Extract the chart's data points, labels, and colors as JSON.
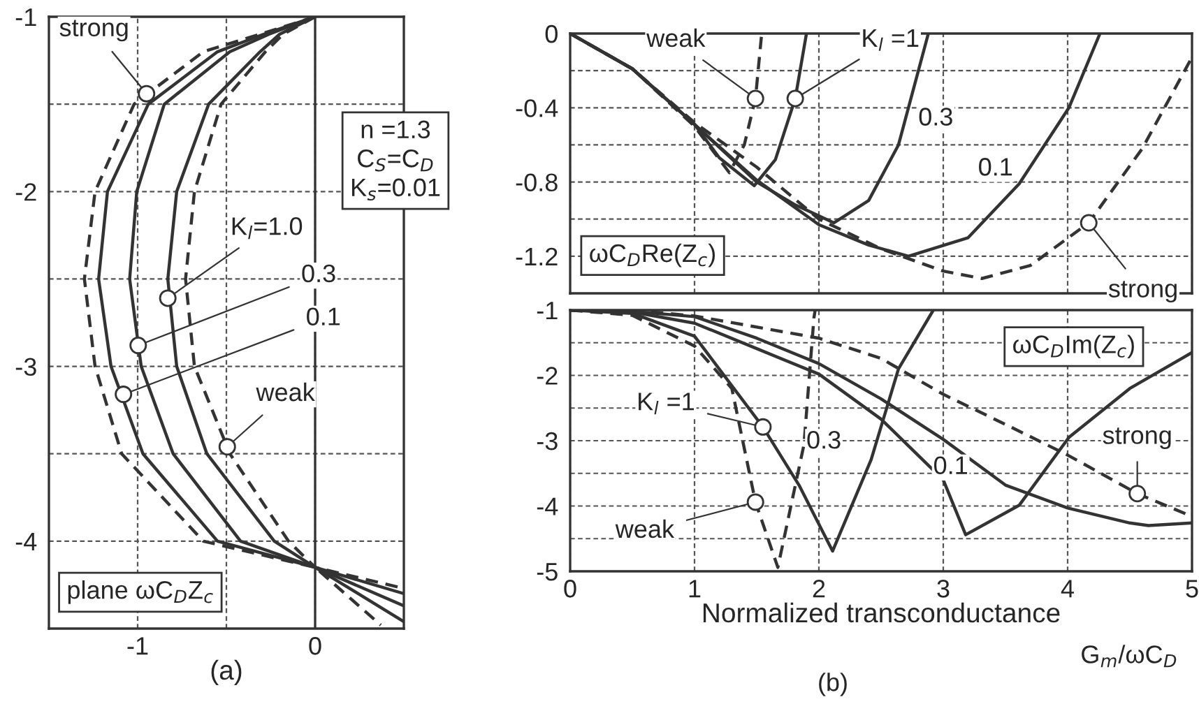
{
  "chart_data": [
    {
      "type": "line",
      "xlabel": "(a)",
      "xlim": [
        -1.5,
        0.5
      ],
      "ylim": [
        -4.5,
        -1
      ],
      "xticks": [
        -1,
        {
          "value": -0.5,
          "label": null
        },
        0
      ],
      "yticks": [
        -1,
        {
          "value": -1.5,
          "label": null
        },
        -2,
        {
          "value": -2.5,
          "label": null
        },
        -3,
        {
          "value": -3.5,
          "label": null
        },
        -4
      ],
      "grid": true,
      "ref_lines": [
        {
          "axis": "x",
          "value": 0,
          "label": null
        }
      ],
      "series": [
        {
          "color": "#333333",
          "line_style": "dashed",
          "x": [
            0,
            -0.31,
            -0.63,
            -1.02,
            -1.24,
            -1.3,
            -1.24,
            -1.09,
            -0.63,
            0,
            0.37
          ],
          "values": [
            -1,
            -1.1,
            -1.2,
            -1.5,
            -2,
            -2.5,
            -3,
            -3.5,
            -4,
            -4.15,
            -4.48
          ]
        },
        {
          "color": "#333333",
          "line_style": "solid",
          "x": [
            0,
            -0.29,
            -0.55,
            -0.94,
            -1.17,
            -1.22,
            -1.15,
            -0.97,
            -0.55,
            0,
            0.5
          ],
          "values": [
            -1,
            -1.1,
            -1.2,
            -1.5,
            -2,
            -2.5,
            -3,
            -3.5,
            -4,
            -4.15,
            -4.46
          ]
        },
        {
          "color": "#333333",
          "line_style": "solid",
          "x": [
            0,
            -0.26,
            -0.48,
            -0.85,
            -1.005,
            -1.045,
            -0.98,
            -0.8,
            -0.42,
            0,
            0.5
          ],
          "values": [
            -1,
            -1.1,
            -1.2,
            -1.5,
            -2,
            -2.5,
            -3,
            -3.5,
            -4,
            -4.15,
            -4.37
          ]
        },
        {
          "color": "#333333",
          "line_style": "solid",
          "x": [
            0,
            -0.2,
            -0.31,
            -0.6,
            -0.78,
            -0.83,
            -0.78,
            -0.61,
            -0.23,
            0,
            0.5
          ],
          "values": [
            -1,
            -1.1,
            -1.2,
            -1.5,
            -2,
            -2.5,
            -3,
            -3.5,
            -4,
            -4.15,
            -4.3
          ]
        },
        {
          "color": "#333333",
          "line_style": "dashed",
          "x": [
            0,
            -0.18,
            -0.28,
            -0.53,
            -0.68,
            -0.73,
            -0.68,
            -0.48,
            -0.15,
            0,
            0.5
          ],
          "values": [
            -1,
            -1.1,
            -1.2,
            -1.5,
            -2,
            -2.5,
            -3,
            -3.5,
            -4,
            -4.15,
            -4.27
          ]
        }
      ],
      "annotations": [
        {
          "text": "strong",
          "x": -0.95,
          "y": -1.44
        },
        {
          "text": "K$_{l}$=1.0",
          "x": -0.83,
          "y": -2.61
        },
        {
          "text": "0.3",
          "x": -0.997,
          "y": -2.88
        },
        {
          "text": "0.1",
          "x": -1.08,
          "y": -3.16
        },
        {
          "text": "weak",
          "x": -0.495,
          "y": -3.46
        },
        "n =1.3\nC$_{S}$=C$_{D}$\nK$_{s}$=0.01",
        "plane ωC$_{D}$Z$_{c}$"
      ]
    },
    {
      "type": "line",
      "xlim": [
        0,
        5
      ],
      "ylim": [
        -1.4,
        0
      ],
      "tick_labels": "y",
      "xticks": [
        0,
        1,
        2,
        3,
        4,
        5
      ],
      "yticks": [
        0,
        {
          "value": -0.2,
          "label": null
        },
        -0.4,
        {
          "value": -0.6,
          "label": null
        },
        -0.8,
        {
          "value": -1.0,
          "label": null
        },
        -1.2
      ],
      "grid": true,
      "series": [
        {
          "color": "#333333",
          "line_style": "dashed",
          "x": [
            0,
            0.5,
            1,
            1.28,
            1.4,
            1.49,
            1.54
          ],
          "values": [
            0,
            -0.19,
            -0.5,
            -0.75,
            -0.6,
            -0.35,
            0
          ]
        },
        {
          "color": "#333333",
          "line_style": "solid",
          "x": [
            0,
            0.5,
            1,
            1.2,
            1.48,
            1.65,
            1.81,
            1.9
          ],
          "values": [
            0,
            -0.19,
            -0.49,
            -0.67,
            -0.82,
            -0.68,
            -0.35,
            0
          ]
        },
        {
          "color": "#333333",
          "line_style": "solid",
          "x": [
            0,
            0.5,
            1,
            1.5,
            1.8,
            2.12,
            2.4,
            2.64,
            2.88
          ],
          "values": [
            0,
            -0.19,
            -0.49,
            -0.8,
            -0.92,
            -1.02,
            -0.9,
            -0.6,
            0
          ]
        },
        {
          "color": "#333333",
          "line_style": "solid",
          "x": [
            0,
            0.5,
            1,
            1.5,
            2,
            2.4,
            2.72,
            3.2,
            3.61,
            4.01,
            4.26
          ],
          "values": [
            0,
            -0.19,
            -0.49,
            -0.79,
            -1.03,
            -1.14,
            -1.2,
            -1.1,
            -0.81,
            -0.4,
            0
          ]
        },
        {
          "color": "#333333",
          "line_style": "dashed",
          "x": [
            0,
            0.5,
            1,
            1.5,
            2,
            2.5,
            3,
            3.31,
            3.7,
            4.17,
            4.6,
            4.99
          ],
          "values": [
            0,
            -0.19,
            -0.48,
            -0.72,
            -1.0,
            -1.16,
            -1.28,
            -1.32,
            -1.25,
            -1.02,
            -0.62,
            -0.14
          ]
        }
      ],
      "annotations": [
        {
          "text": "weak",
          "x": 1.49,
          "y": -0.35
        },
        {
          "text": "K$_{l}$ =1",
          "x": 1.81,
          "y": -0.35
        },
        "0.3",
        "0.1",
        {
          "text": "strong",
          "x": 4.17,
          "y": -1.02
        },
        "ωC$_{D}$Re(Z$_{c}$)"
      ]
    },
    {
      "type": "line",
      "xlabel": "Normalized transconductance",
      "xlim": [
        0,
        5
      ],
      "ylim": [
        -5,
        -1
      ],
      "xticks": [
        0,
        1,
        2,
        3,
        4,
        5
      ],
      "yticks": [
        -1,
        {
          "value": -1.5,
          "label": null
        },
        -2,
        {
          "value": -2.5,
          "label": null
        },
        -3,
        {
          "value": -3.5,
          "label": null
        },
        -4,
        {
          "value": -4.5,
          "label": null
        },
        -5
      ],
      "grid": true,
      "series": [
        {
          "color": "#333333",
          "line_style": "dashed",
          "x": [
            0,
            0.5,
            1,
            1.3,
            1.49,
            1.67,
            1.88,
            1.96,
            1.97
          ],
          "values": [
            -1,
            -1.08,
            -1.55,
            -2.2,
            -3.94,
            -4.94,
            -3.06,
            -1.12,
            -1.0
          ]
        },
        {
          "color": "#333333",
          "line_style": "solid",
          "x": [
            0,
            0.5,
            1,
            1.55,
            1.84,
            2.11,
            2.42,
            2.64,
            2.92
          ],
          "values": [
            -1,
            -1.05,
            -1.4,
            -2.79,
            -3.68,
            -4.69,
            -3.29,
            -1.9,
            -1.0
          ]
        },
        {
          "color": "#333333",
          "line_style": "solid",
          "x": [
            0,
            0.5,
            1,
            1.5,
            2,
            2.5,
            3,
            3.18,
            3.61,
            4.01,
            4.5,
            5
          ],
          "values": [
            -1,
            -1.03,
            -1.2,
            -1.59,
            -1.98,
            -2.67,
            -3.6,
            -4.44,
            -3.99,
            -2.95,
            -2.2,
            -1.65
          ]
        },
        {
          "color": "#333333",
          "line_style": "solid",
          "x": [
            0,
            0.5,
            1,
            1.5,
            2,
            2.5,
            3,
            3.5,
            4,
            4.5,
            4.65,
            5
          ],
          "values": [
            -1,
            -1.02,
            -1.1,
            -1.43,
            -1.82,
            -2.36,
            -2.98,
            -3.68,
            -4.03,
            -4.26,
            -4.3,
            -4.26
          ]
        },
        {
          "color": "#333333",
          "line_style": "dashed",
          "x": [
            0,
            0.5,
            1,
            2,
            2.5,
            3,
            3.5,
            4,
            4.56,
            5
          ],
          "values": [
            -1,
            -1.0,
            -1.09,
            -1.43,
            -1.74,
            -2.29,
            -2.75,
            -3.22,
            -3.81,
            -4.16
          ]
        }
      ],
      "annotations": [
        {
          "text": "K$_{l}$ =1",
          "x": 1.55,
          "y": -2.79
        },
        "0.3",
        "0.1",
        {
          "text": "weak",
          "x": 1.49,
          "y": -3.94
        },
        {
          "text": "strong",
          "x": 4.56,
          "y": -3.81
        },
        "ωC$_{D}$Im(Z$_{c}$)",
        "G$_{m}$/ωC$_{D}$",
        "(b)"
      ]
    }
  ]
}
